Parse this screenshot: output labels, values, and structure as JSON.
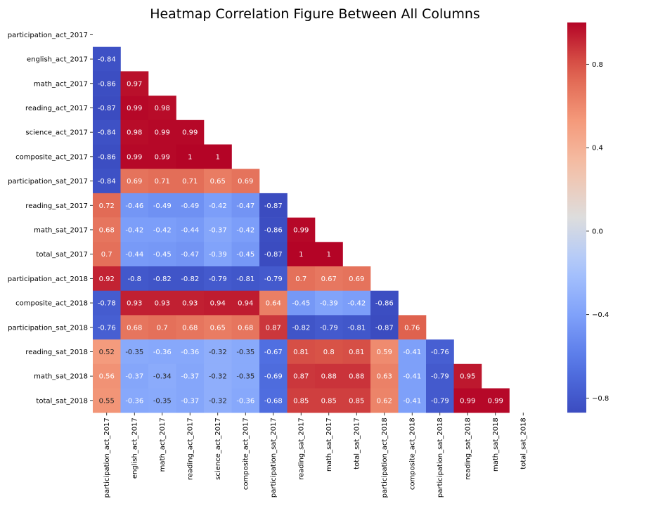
{
  "chart_data": {
    "type": "heatmap",
    "title": "Heatmap Correlation Figure Between All Columns",
    "labels": [
      "participation_act_2017",
      "english_act_2017",
      "math_act_2017",
      "reading_act_2017",
      "science_act_2017",
      "composite_act_2017",
      "participation_sat_2017",
      "reading_sat_2017",
      "math_sat_2017",
      "total_sat_2017",
      "participation_act_2018",
      "composite_act_2018",
      "participation_sat_2018",
      "reading_sat_2018",
      "math_sat_2018",
      "total_sat_2018"
    ],
    "mask": "upper-triangle-including-diagonal",
    "rows": [
      [],
      [
        -0.84
      ],
      [
        -0.86,
        0.97
      ],
      [
        -0.87,
        0.99,
        0.98
      ],
      [
        -0.84,
        0.98,
        0.99,
        0.99
      ],
      [
        -0.86,
        0.99,
        0.99,
        1,
        1
      ],
      [
        -0.84,
        0.69,
        0.71,
        0.71,
        0.65,
        0.69
      ],
      [
        0.72,
        -0.46,
        -0.49,
        -0.49,
        -0.42,
        -0.47,
        -0.87
      ],
      [
        0.68,
        -0.42,
        -0.42,
        -0.44,
        -0.37,
        -0.42,
        -0.86,
        0.99
      ],
      [
        0.7,
        -0.44,
        -0.45,
        -0.47,
        -0.39,
        -0.45,
        -0.87,
        1,
        1
      ],
      [
        0.92,
        -0.8,
        -0.82,
        -0.82,
        -0.79,
        -0.81,
        -0.79,
        0.7,
        0.67,
        0.69
      ],
      [
        -0.78,
        0.93,
        0.93,
        0.93,
        0.94,
        0.94,
        0.64,
        -0.45,
        -0.39,
        -0.42,
        -0.86
      ],
      [
        -0.76,
        0.68,
        0.7,
        0.68,
        0.65,
        0.68,
        0.87,
        -0.82,
        -0.79,
        -0.81,
        -0.87,
        0.76
      ],
      [
        0.52,
        -0.35,
        -0.36,
        -0.36,
        -0.32,
        -0.35,
        -0.67,
        0.81,
        0.8,
        0.81,
        0.59,
        -0.41,
        -0.76
      ],
      [
        0.56,
        -0.37,
        -0.34,
        -0.37,
        -0.32,
        -0.35,
        -0.69,
        0.87,
        0.88,
        0.88,
        0.63,
        -0.41,
        -0.79,
        0.95
      ],
      [
        0.55,
        -0.36,
        -0.35,
        -0.37,
        -0.32,
        -0.36,
        -0.68,
        0.85,
        0.85,
        0.85,
        0.62,
        -0.41,
        -0.79,
        0.99,
        0.99
      ]
    ],
    "colormap": "coolwarm",
    "color_range": [
      -0.87,
      1.0
    ],
    "colorbar_ticks": [
      -0.8,
      -0.4,
      0.0,
      0.4,
      0.8
    ],
    "colorbar_tick_labels": [
      "−0.8",
      "−0.4",
      "0.0",
      "0.4",
      "0.8"
    ],
    "annotations": true,
    "grid": false
  }
}
